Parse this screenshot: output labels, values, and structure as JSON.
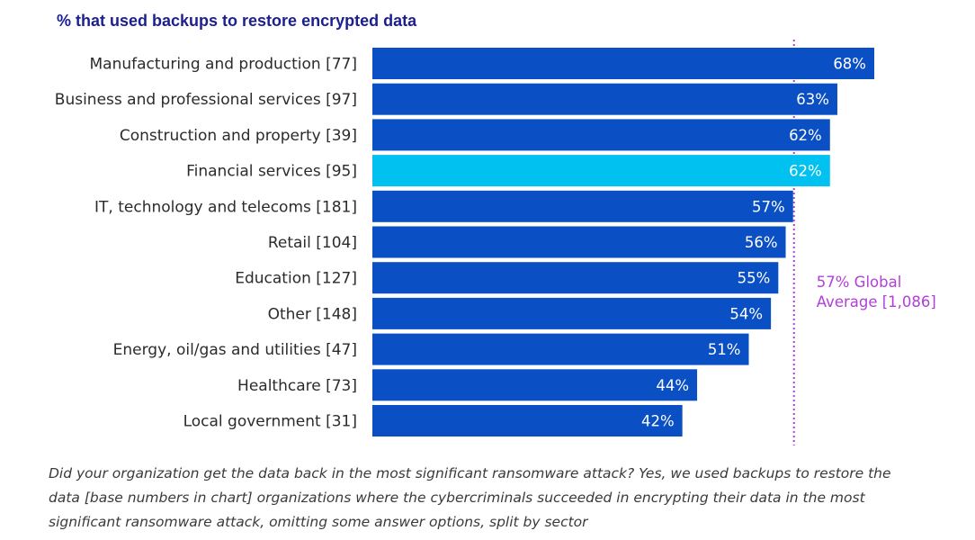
{
  "chart_data": {
    "type": "bar",
    "orientation": "horizontal",
    "title": "% that used backups to restore encrypted data",
    "categories": [
      "Manufacturing and production [77]",
      "Business and professional services [97]",
      "Construction and property [39]",
      "Financial services [95]",
      "IT, technology and telecoms [181]",
      "Retail [104]",
      "Education [127]",
      "Other [148]",
      "Energy, oil/gas and utilities [47]",
      "Healthcare [73]",
      "Local government [31]"
    ],
    "values": [
      68,
      63,
      62,
      62,
      57,
      56,
      55,
      54,
      51,
      44,
      42
    ],
    "value_labels": [
      "68%",
      "63%",
      "62%",
      "62%",
      "57%",
      "56%",
      "55%",
      "54%",
      "51%",
      "44%",
      "42%"
    ],
    "highlight_category": "Financial services [95]",
    "reference_line": {
      "value": 57,
      "label_lines": [
        "57% Global",
        "Average [1,086]"
      ],
      "style": "dotted",
      "color": "#b23fd9"
    },
    "colors": {
      "bar": "#0a4fc4",
      "highlight": "#00c1f0",
      "title": "#1c1f8f"
    },
    "xlim": [
      0,
      68
    ],
    "grid": false,
    "legend": "none",
    "xlabel": "",
    "ylabel": ""
  },
  "caption": "Did your organization get the data back in the most significant ransomware attack? Yes, we used backups to restore the data [base numbers in chart] organizations where the cybercriminals succeeded in encrypting their data in the most significant ransomware attack, omitting some answer options, split by sector"
}
